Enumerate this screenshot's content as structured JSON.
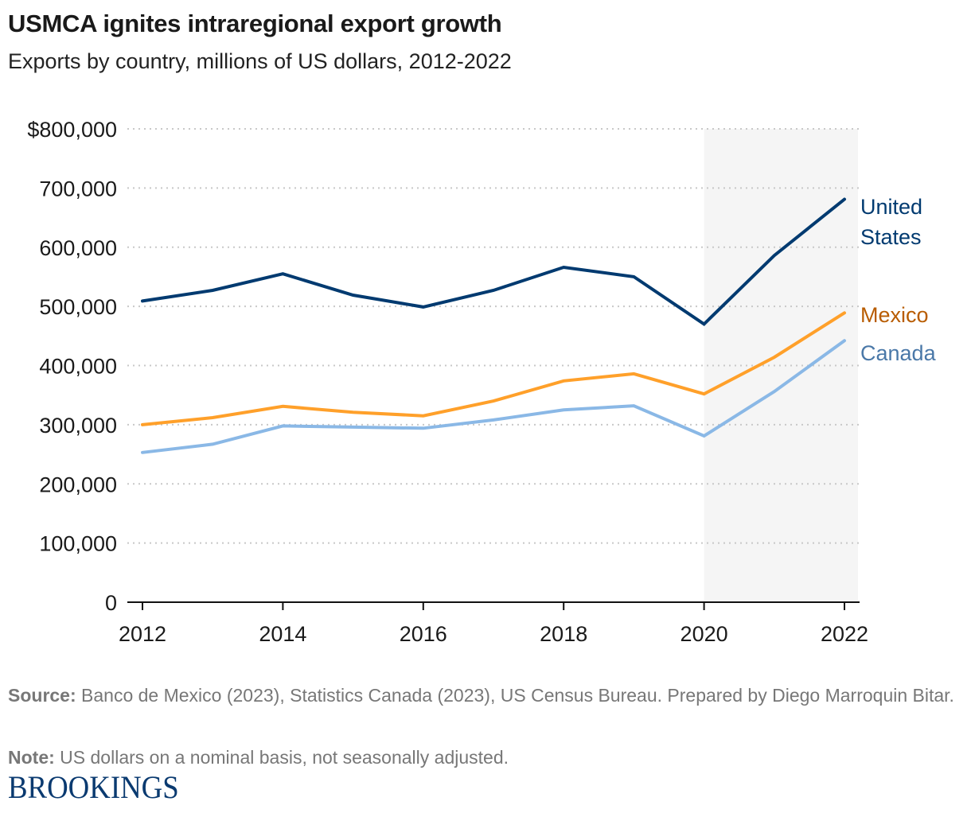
{
  "header": {
    "title": "USMCA ignites intraregional export growth",
    "subtitle": "Exports by country, millions of US dollars, 2012-2022"
  },
  "chart_data": {
    "type": "line",
    "title": "USMCA ignites intraregional export growth",
    "subtitle": "Exports by country, millions of US dollars, 2012-2022",
    "xlabel": "",
    "ylabel": "",
    "x": [
      2012,
      2013,
      2014,
      2015,
      2016,
      2017,
      2018,
      2019,
      2020,
      2021,
      2022
    ],
    "xlim": [
      2012,
      2022
    ],
    "ylim": [
      0,
      800000
    ],
    "x_ticks": [
      "2012",
      "2014",
      "2016",
      "2018",
      "2020",
      "2022"
    ],
    "x_tick_values": [
      2012,
      2014,
      2016,
      2018,
      2020,
      2022
    ],
    "y_ticks": [
      "0",
      "100,000",
      "200,000",
      "300,000",
      "400,000",
      "500,000",
      "600,000",
      "700,000",
      "$800,000"
    ],
    "y_tick_values": [
      0,
      100000,
      200000,
      300000,
      400000,
      500000,
      600000,
      700000,
      800000
    ],
    "grid": "horizontal dotted",
    "highlight_region": {
      "from": 2020,
      "to": 2022.1,
      "color": "#f5f5f5"
    },
    "series": [
      {
        "name": "United States",
        "label_lines": [
          "United",
          "States"
        ],
        "color": "#003a70",
        "label_color": "#003a70",
        "values": [
          509000,
          527000,
          555000,
          519000,
          499000,
          527000,
          566000,
          550000,
          470000,
          586000,
          681000
        ]
      },
      {
        "name": "Mexico",
        "label_lines": [
          "Mexico"
        ],
        "color": "#ffa02a",
        "label_color": "#b85c00",
        "values": [
          300000,
          312000,
          331000,
          321000,
          315000,
          340000,
          374000,
          386000,
          352000,
          414000,
          489000
        ]
      },
      {
        "name": "Canada",
        "label_lines": [
          "Canada"
        ],
        "color": "#8ab8e6",
        "label_color": "#4a78a8",
        "values": [
          253000,
          267000,
          298000,
          296000,
          294000,
          308000,
          325000,
          332000,
          281000,
          356000,
          442000
        ]
      }
    ],
    "legend": "direct labels at line ends (right)"
  },
  "footer": {
    "source_label": "Source:",
    "source_text": " Banco de Mexico (2023), Statistics Canada (2023), US Census Bureau. Prepared by Diego Marroquin Bitar.",
    "note_label": "Note:",
    "note_text": " US dollars on a nominal basis, not seasonally adjusted.",
    "logo": "BROOKINGS"
  }
}
